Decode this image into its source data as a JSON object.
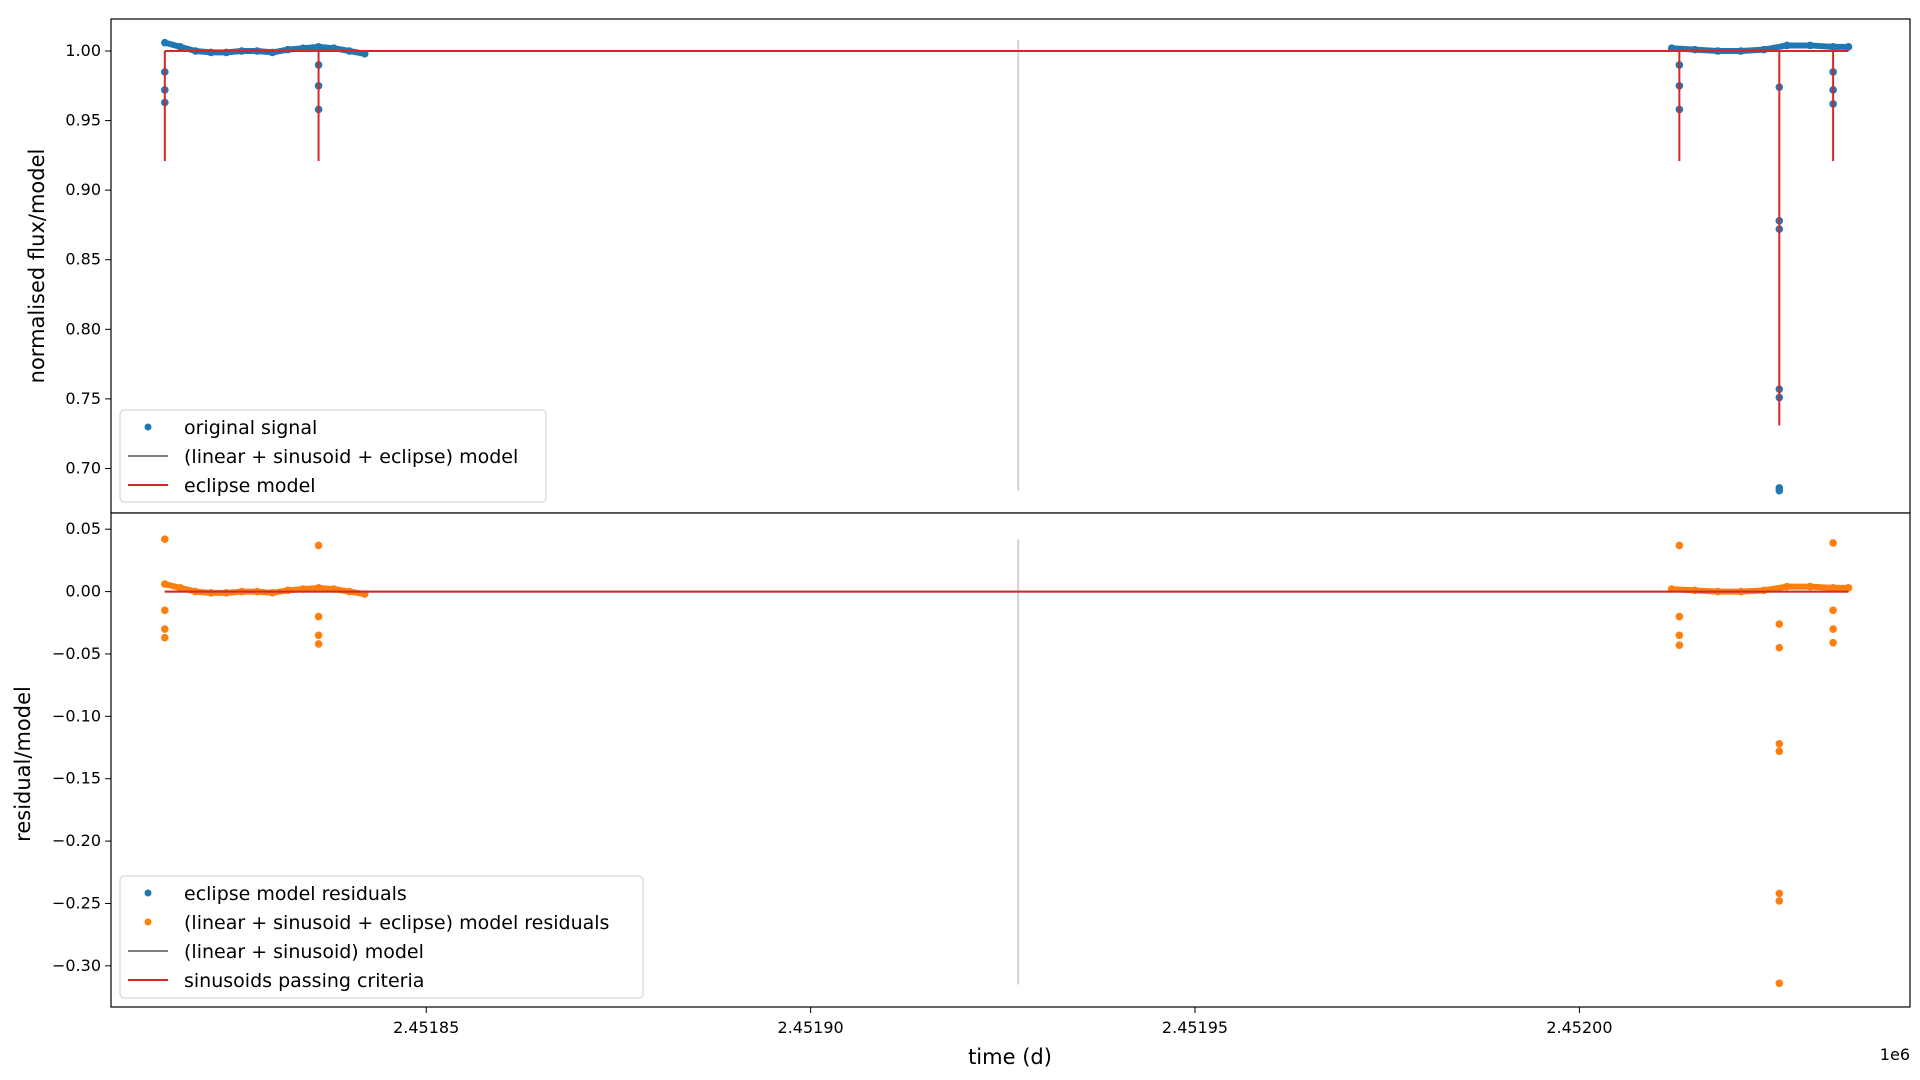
{
  "chart_data": [
    {
      "type": "scatter",
      "panel": "top",
      "ylabel": "normalised flux/model",
      "xlabel": "",
      "ylim": [
        0.668,
        1.023
      ],
      "yticks": [
        0.7,
        0.75,
        0.8,
        0.85,
        0.9,
        0.95,
        1.0
      ],
      "ytick_labels": [
        "0.70",
        "0.75",
        "0.80",
        "0.85",
        "0.90",
        "0.95",
        "1.00"
      ],
      "legend": {
        "position": "lower-left",
        "entries": [
          {
            "label": "original signal",
            "kind": "marker",
            "color": "#1f77b4"
          },
          {
            "label": "(linear + sinusoid + eclipse) model",
            "kind": "line",
            "color": "#808080"
          },
          {
            "label": "eclipse model",
            "kind": "line",
            "color": "#d62728"
          }
        ]
      },
      "series": [
        {
          "name": "original signal",
          "color": "#1f77b4",
          "x": [
            2451816.0,
            2451818.0,
            2451820.0,
            2451822.0,
            2451824.0,
            2451826.0,
            2451828.0,
            2451830.0,
            2451832.0,
            2451834.0,
            2451836.0,
            2451838.0,
            2451840.0,
            2451842.0,
            2452012.0,
            2452015.0,
            2452018.0,
            2452021.0,
            2452024.0,
            2452027.0,
            2452030.0,
            2452033.0,
            2452035.0
          ],
          "y": [
            1.006,
            1.003,
            1.0,
            0.999,
            0.999,
            1.0,
            1.0,
            0.999,
            1.001,
            1.002,
            1.003,
            1.002,
            1.0,
            0.998,
            1.002,
            1.001,
            1.0,
            1.0,
            1.001,
            1.004,
            1.004,
            1.003,
            1.003
          ]
        },
        {
          "name": "original signal (eclipses)",
          "color": "#1f77b4",
          "x": [
            2451816.0,
            2451816.0,
            2451816.0,
            2451836.0,
            2451836.0,
            2451836.0,
            2452013.0,
            2452013.0,
            2452013.0,
            2452026.0,
            2452026.0,
            2452026.0,
            2452026.0,
            2452026.0,
            2452026.0,
            2452026.0,
            2452033.0,
            2452033.0,
            2452033.0
          ],
          "y": [
            0.985,
            0.972,
            0.963,
            0.99,
            0.975,
            0.958,
            0.99,
            0.975,
            0.958,
            0.974,
            0.878,
            0.872,
            0.757,
            0.751,
            0.686,
            0.684,
            0.985,
            0.972,
            0.962
          ]
        }
      ],
      "lines": [
        {
          "name": "(linear + sinusoid + eclipse) model",
          "color": "#808080",
          "x": [
            2451816.0,
            2452035.0
          ],
          "y": [
            1.0,
            1.0
          ]
        },
        {
          "name": "eclipse model",
          "color": "#d62728",
          "x": [
            2451816.0,
            2452035.0
          ],
          "y": [
            1.0,
            1.0
          ]
        }
      ],
      "dips": [
        {
          "x": 2451816.0,
          "y": 0.921
        },
        {
          "x": 2451836.0,
          "y": 0.921
        },
        {
          "x": 2452013.0,
          "y": 0.921
        },
        {
          "x": 2452026.0,
          "y": 0.731
        },
        {
          "x": 2452033.0,
          "y": 0.921
        }
      ],
      "vline": {
        "x": 2451927.0,
        "y": [
          0.684,
          1.008
        ],
        "color": "#d3d3d3"
      }
    },
    {
      "type": "scatter",
      "panel": "bottom",
      "ylabel": "residual/model",
      "xlabel": "time (d)",
      "x_offset_label": "1e6",
      "xlim": [
        2451809.0,
        2452043.0
      ],
      "xticks": [
        2451850.0,
        2451900.0,
        2451950.0,
        2452000.0
      ],
      "xtick_labels": [
        "2.45185",
        "2.45190",
        "2.45195",
        "2.45200"
      ],
      "ylim": [
        -0.333,
        0.063
      ],
      "yticks": [
        -0.3,
        -0.25,
        -0.2,
        -0.15,
        -0.1,
        -0.05,
        0.0,
        0.05
      ],
      "ytick_labels": [
        "−0.30",
        "−0.25",
        "−0.20",
        "−0.15",
        "−0.10",
        "−0.05",
        "0.00",
        "0.05"
      ],
      "legend": {
        "position": "lower-left",
        "entries": [
          {
            "label": "eclipse model residuals",
            "kind": "marker",
            "color": "#1f77b4"
          },
          {
            "label": "(linear + sinusoid + eclipse) model residuals",
            "kind": "marker",
            "color": "#ff7f0e"
          },
          {
            "label": "(linear + sinusoid) model",
            "kind": "line",
            "color": "#808080"
          },
          {
            "label": "sinusoids passing criteria",
            "kind": "line",
            "color": "#d62728"
          }
        ]
      },
      "series": [
        {
          "name": "(linear + sinusoid + eclipse) model residuals",
          "color": "#ff7f0e",
          "x": [
            2451816.0,
            2451818.0,
            2451820.0,
            2451822.0,
            2451824.0,
            2451826.0,
            2451828.0,
            2451830.0,
            2451832.0,
            2451834.0,
            2451836.0,
            2451838.0,
            2451840.0,
            2451842.0,
            2452012.0,
            2452015.0,
            2452018.0,
            2452021.0,
            2452024.0,
            2452027.0,
            2452030.0,
            2452033.0,
            2452035.0
          ],
          "y": [
            0.006,
            0.003,
            0.0,
            -0.001,
            -0.001,
            0.0,
            0.0,
            -0.001,
            0.001,
            0.002,
            0.003,
            0.002,
            0.0,
            -0.002,
            0.002,
            0.001,
            0.0,
            0.0,
            0.001,
            0.004,
            0.004,
            0.003,
            0.003
          ]
        },
        {
          "name": "(linear + sinusoid + eclipse) model residuals (outliers)",
          "color": "#ff7f0e",
          "x": [
            2451816.0,
            2451816.0,
            2451816.0,
            2451816.0,
            2451836.0,
            2451836.0,
            2451836.0,
            2451836.0,
            2452013.0,
            2452013.0,
            2452013.0,
            2452013.0,
            2452026.0,
            2452026.0,
            2452026.0,
            2452026.0,
            2452026.0,
            2452026.0,
            2452026.0,
            2452033.0,
            2452033.0,
            2452033.0,
            2452033.0
          ],
          "y": [
            0.042,
            -0.015,
            -0.03,
            -0.037,
            0.037,
            -0.02,
            -0.035,
            -0.042,
            0.037,
            -0.02,
            -0.035,
            -0.043,
            -0.026,
            -0.045,
            -0.122,
            -0.128,
            -0.242,
            -0.248,
            -0.314,
            0.039,
            -0.015,
            -0.03,
            -0.041
          ]
        }
      ],
      "lines": [
        {
          "name": "(linear + sinusoid) model",
          "color": "#808080",
          "x": [
            2451816.0,
            2452035.0
          ],
          "y": [
            0.0,
            0.0
          ]
        },
        {
          "name": "sinusoids passing criteria",
          "color": "#d62728",
          "x": [
            2451816.0,
            2452035.0
          ],
          "y": [
            0.0,
            0.0
          ]
        }
      ],
      "vline": {
        "x": 2451927.0,
        "y": [
          -0.315,
          0.042
        ],
        "color": "#d3d3d3"
      }
    }
  ]
}
